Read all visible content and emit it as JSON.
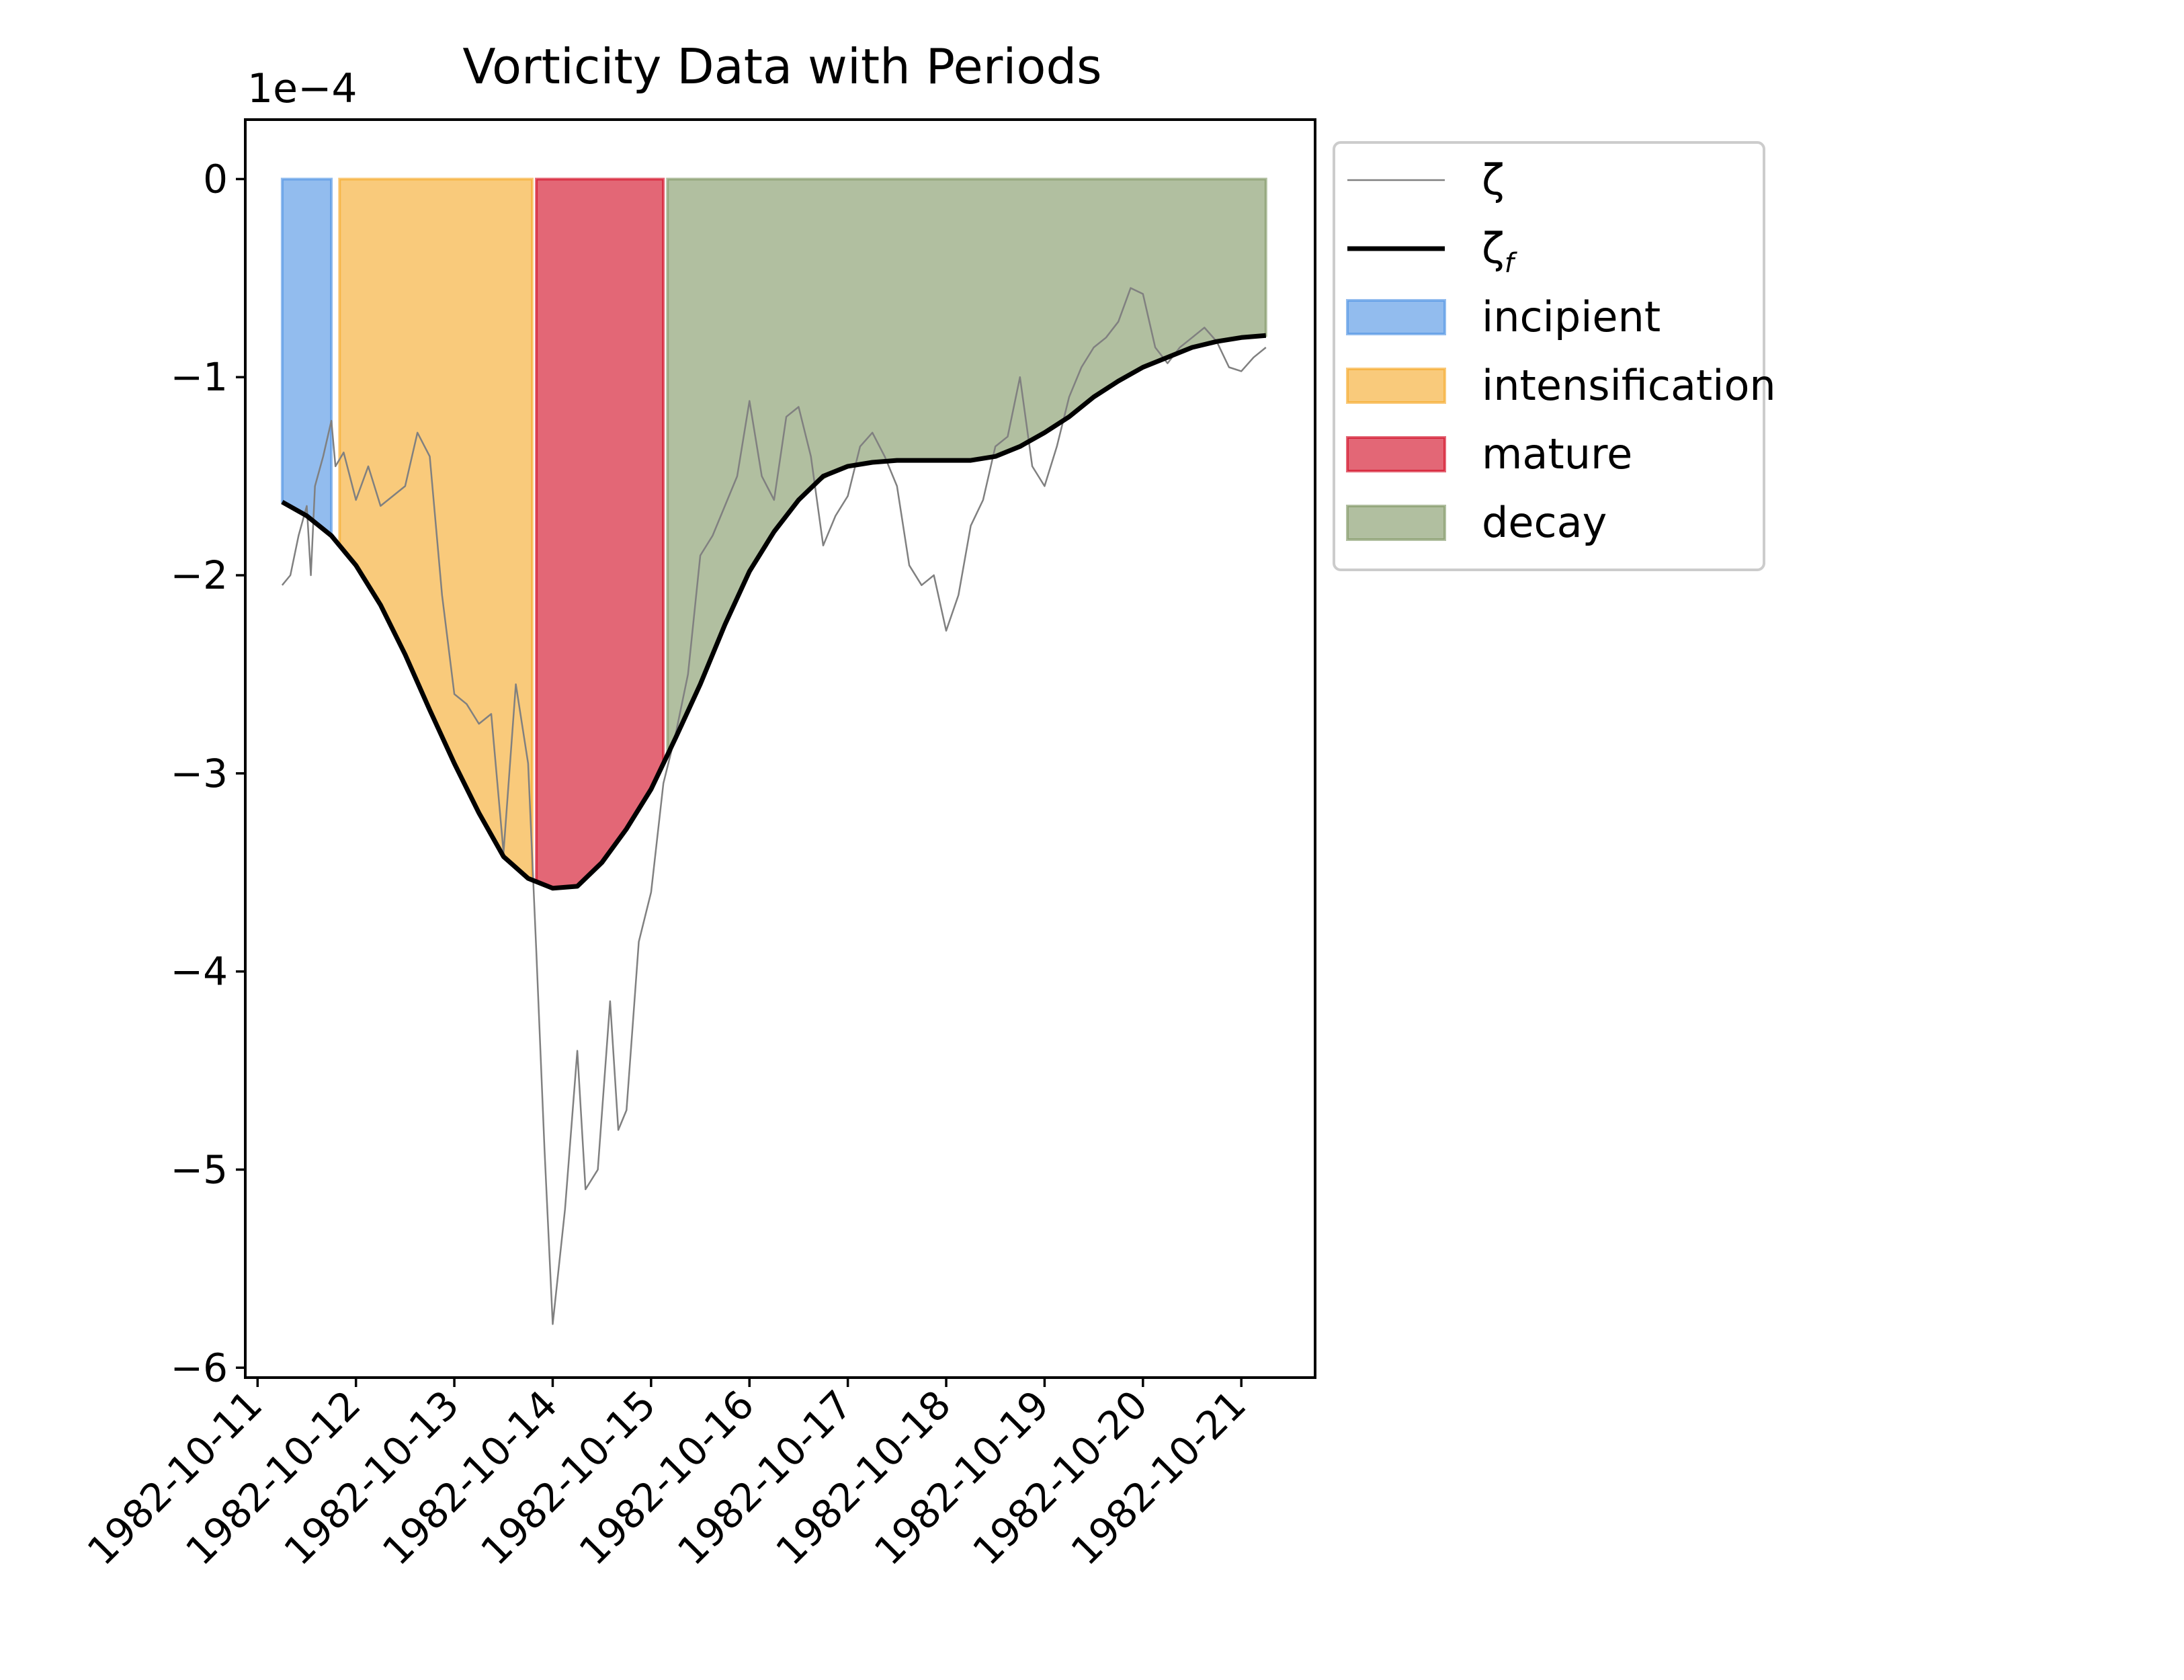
{
  "chart_data": {
    "type": "line",
    "title": "Vorticity Data with Periods",
    "xlabel": "",
    "ylabel": "",
    "y_offset_label": "1e−4",
    "xlim": [
      "1982-10-10T21:00",
      "1982-10-21T18:00"
    ],
    "ylim": [
      -0.000605,
      3e-05
    ],
    "xticks": [
      "1982-10-11",
      "1982-10-12",
      "1982-10-13",
      "1982-10-14",
      "1982-10-15",
      "1982-10-16",
      "1982-10-17",
      "1982-10-18",
      "1982-10-19",
      "1982-10-20",
      "1982-10-21"
    ],
    "yticks": [
      0,
      -0.0001,
      -0.0002,
      -0.0003,
      -0.0004,
      -0.0005,
      -0.0006
    ],
    "ytick_labels": [
      "0",
      "−1",
      "−2",
      "−3",
      "−4",
      "−5",
      "−6"
    ],
    "grid": false,
    "legend_position": "outside upper-right",
    "legend": [
      {
        "label": "ζ",
        "kind": "line",
        "color": "#808080"
      },
      {
        "label": "ζ",
        "sub": "f",
        "kind": "line",
        "color": "#000000"
      },
      {
        "label": "incipient",
        "kind": "patch",
        "color": "#4a90e2"
      },
      {
        "label": "intensification",
        "kind": "patch",
        "color": "#f5a623"
      },
      {
        "label": "mature",
        "kind": "patch",
        "color": "#d0021b"
      },
      {
        "label": "decay",
        "kind": "patch",
        "color": "#7d9461"
      }
    ],
    "periods": [
      {
        "name": "incipient",
        "start": "1982-10-11T06:00",
        "end": "1982-10-11T18:00",
        "color": "#4a90e2"
      },
      {
        "name": "intensification",
        "start": "1982-10-11T20:00",
        "end": "1982-10-13T19:00",
        "color": "#f5a623"
      },
      {
        "name": "mature",
        "start": "1982-10-13T20:00",
        "end": "1982-10-15T03:00",
        "color": "#d0021b"
      },
      {
        "name": "decay",
        "start": "1982-10-15T04:00",
        "end": "1982-10-21T06:00",
        "color": "#7d9461"
      }
    ],
    "series": [
      {
        "name": "ζ",
        "color": "#808080",
        "x": [
          "1982-10-11T06:00",
          "1982-10-11T08:00",
          "1982-10-11T10:00",
          "1982-10-11T12:00",
          "1982-10-11T13:00",
          "1982-10-11T14:00",
          "1982-10-11T16:00",
          "1982-10-11T18:00",
          "1982-10-11T19:00",
          "1982-10-11T21:00",
          "1982-10-12T00:00",
          "1982-10-12T03:00",
          "1982-10-12T06:00",
          "1982-10-12T09:00",
          "1982-10-12T12:00",
          "1982-10-12T15:00",
          "1982-10-12T18:00",
          "1982-10-12T21:00",
          "1982-10-13T00:00",
          "1982-10-13T03:00",
          "1982-10-13T06:00",
          "1982-10-13T09:00",
          "1982-10-13T12:00",
          "1982-10-13T15:00",
          "1982-10-13T18:00",
          "1982-10-13T20:00",
          "1982-10-13T22:00",
          "1982-10-14T00:00",
          "1982-10-14T03:00",
          "1982-10-14T06:00",
          "1982-10-14T08:00",
          "1982-10-14T11:00",
          "1982-10-14T14:00",
          "1982-10-14T16:00",
          "1982-10-14T18:00",
          "1982-10-14T21:00",
          "1982-10-15T00:00",
          "1982-10-15T03:00",
          "1982-10-15T06:00",
          "1982-10-15T09:00",
          "1982-10-15T12:00",
          "1982-10-15T15:00",
          "1982-10-15T18:00",
          "1982-10-15T21:00",
          "1982-10-16T00:00",
          "1982-10-16T03:00",
          "1982-10-16T06:00",
          "1982-10-16T09:00",
          "1982-10-16T12:00",
          "1982-10-16T15:00",
          "1982-10-16T18:00",
          "1982-10-16T21:00",
          "1982-10-17T00:00",
          "1982-10-17T03:00",
          "1982-10-17T06:00",
          "1982-10-17T09:00",
          "1982-10-17T12:00",
          "1982-10-17T15:00",
          "1982-10-17T18:00",
          "1982-10-17T21:00",
          "1982-10-18T00:00",
          "1982-10-18T03:00",
          "1982-10-18T06:00",
          "1982-10-18T09:00",
          "1982-10-18T12:00",
          "1982-10-18T15:00",
          "1982-10-18T18:00",
          "1982-10-18T21:00",
          "1982-10-19T00:00",
          "1982-10-19T03:00",
          "1982-10-19T06:00",
          "1982-10-19T09:00",
          "1982-10-19T12:00",
          "1982-10-19T15:00",
          "1982-10-19T18:00",
          "1982-10-19T21:00",
          "1982-10-20T00:00",
          "1982-10-20T03:00",
          "1982-10-20T06:00",
          "1982-10-20T09:00",
          "1982-10-20T12:00",
          "1982-10-20T15:00",
          "1982-10-20T18:00",
          "1982-10-20T21:00",
          "1982-10-21T00:00",
          "1982-10-21T03:00",
          "1982-10-21T06:00"
        ],
        "y": [
          -0.000205,
          -0.0002,
          -0.00018,
          -0.000165,
          -0.0002,
          -0.000155,
          -0.00014,
          -0.000122,
          -0.000145,
          -0.000138,
          -0.000162,
          -0.000145,
          -0.000165,
          -0.00016,
          -0.000155,
          -0.000128,
          -0.00014,
          -0.00021,
          -0.00026,
          -0.000265,
          -0.000275,
          -0.00027,
          -0.00034,
          -0.000255,
          -0.000295,
          -0.00039,
          -0.00049,
          -0.000578,
          -0.00052,
          -0.00044,
          -0.00051,
          -0.0005,
          -0.000415,
          -0.00048,
          -0.00047,
          -0.000385,
          -0.00036,
          -0.000305,
          -0.00028,
          -0.00025,
          -0.00019,
          -0.00018,
          -0.000165,
          -0.00015,
          -0.000112,
          -0.00015,
          -0.000162,
          -0.00012,
          -0.000115,
          -0.00014,
          -0.000185,
          -0.00017,
          -0.00016,
          -0.000135,
          -0.000128,
          -0.00014,
          -0.000155,
          -0.000195,
          -0.000205,
          -0.0002,
          -0.000228,
          -0.00021,
          -0.000175,
          -0.000162,
          -0.000135,
          -0.00013,
          -0.0001,
          -0.000145,
          -0.000155,
          -0.000135,
          -0.00011,
          -9.5e-05,
          -8.5e-05,
          -8e-05,
          -7.2e-05,
          -5.5e-05,
          -5.8e-05,
          -8.5e-05,
          -9.3e-05,
          -8.5e-05,
          -8e-05,
          -7.5e-05,
          -8.2e-05,
          -9.5e-05,
          -9.7e-05,
          -9e-05,
          -8.5e-05
        ]
      },
      {
        "name": "ζ_f",
        "color": "#000000",
        "x": [
          "1982-10-11T06:00",
          "1982-10-11T12:00",
          "1982-10-11T18:00",
          "1982-10-12T00:00",
          "1982-10-12T06:00",
          "1982-10-12T12:00",
          "1982-10-12T18:00",
          "1982-10-13T00:00",
          "1982-10-13T06:00",
          "1982-10-13T12:00",
          "1982-10-13T18:00",
          "1982-10-14T00:00",
          "1982-10-14T06:00",
          "1982-10-14T12:00",
          "1982-10-14T18:00",
          "1982-10-15T00:00",
          "1982-10-15T06:00",
          "1982-10-15T12:00",
          "1982-10-15T18:00",
          "1982-10-16T00:00",
          "1982-10-16T06:00",
          "1982-10-16T12:00",
          "1982-10-16T18:00",
          "1982-10-17T00:00",
          "1982-10-17T06:00",
          "1982-10-17T12:00",
          "1982-10-17T18:00",
          "1982-10-18T00:00",
          "1982-10-18T06:00",
          "1982-10-18T12:00",
          "1982-10-18T18:00",
          "1982-10-19T00:00",
          "1982-10-19T06:00",
          "1982-10-19T12:00",
          "1982-10-19T18:00",
          "1982-10-20T00:00",
          "1982-10-20T06:00",
          "1982-10-20T12:00",
          "1982-10-20T18:00",
          "1982-10-21T00:00",
          "1982-10-21T06:00"
        ],
        "y": [
          -0.000163,
          -0.00017,
          -0.00018,
          -0.000195,
          -0.000215,
          -0.00024,
          -0.000268,
          -0.000295,
          -0.00032,
          -0.000342,
          -0.000353,
          -0.000358,
          -0.000357,
          -0.000345,
          -0.000328,
          -0.000308,
          -0.000282,
          -0.000255,
          -0.000225,
          -0.000198,
          -0.000178,
          -0.000162,
          -0.00015,
          -0.000145,
          -0.000143,
          -0.000142,
          -0.000142,
          -0.000142,
          -0.000142,
          -0.00014,
          -0.000135,
          -0.000128,
          -0.00012,
          -0.00011,
          -0.000102,
          -9.5e-05,
          -9e-05,
          -8.5e-05,
          -8.2e-05,
          -8e-05,
          -7.9e-05
        ]
      }
    ]
  }
}
